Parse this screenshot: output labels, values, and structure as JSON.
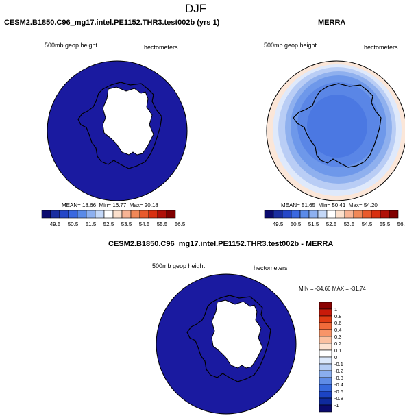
{
  "page": {
    "title": "DJF"
  },
  "panel_test": {
    "title": "CESM2.B1850.C96_mg17.intel.PE1152.THR3.test002b (yrs 1)",
    "variable": "500mb geop height",
    "units": "hectometers",
    "stats": {
      "mean_label": "MEAN=",
      "mean": "18.66",
      "min_label": "Min=",
      "min": "16.77",
      "max_label": "Max=",
      "max": "20.18"
    }
  },
  "panel_ref": {
    "title": "MERRA",
    "variable": "500mb geop height",
    "units": "hectometers",
    "stats": {
      "mean_label": "MEAN=",
      "mean": "51.65",
      "min_label": "Min=",
      "min": "50.41",
      "max_label": "Max=",
      "max": "54.20"
    }
  },
  "panel_diff": {
    "title": "CESM2.B1850.C96_mg17.intel.PE1152.THR3.test002b - MERRA",
    "variable": "500mb geop height",
    "units": "hectometers",
    "minmax": "MIN = -34.66 MAX = -31.74"
  },
  "colorbar_main": {
    "labels": [
      "49.5",
      "50.5",
      "51.5",
      "52.5",
      "53.5",
      "54.5",
      "55.5",
      "56.5"
    ],
    "colors": [
      "#0b0b6e",
      "#1a2ea0",
      "#2547c8",
      "#3a68e0",
      "#5a8ae8",
      "#8db0f0",
      "#c4d8f8",
      "#ffffff",
      "#fce0cc",
      "#f8b494",
      "#f08858",
      "#e85a2c",
      "#d83010",
      "#b01008",
      "#800000"
    ]
  },
  "colorbar_diff": {
    "labels": [
      "1",
      "0.8",
      "0.6",
      "0.4",
      "0.3",
      "0.2",
      "0.1",
      "0",
      "-0.1",
      "-0.2",
      "-0.3",
      "-0.4",
      "-0.6",
      "-0.8",
      "-1"
    ],
    "colors": [
      "#8b0000",
      "#c81a0a",
      "#e03c14",
      "#f06a3a",
      "#f89468",
      "#fbc0a0",
      "#fde2d0",
      "#ffffff",
      "#dbe8fb",
      "#b4ccf4",
      "#8aaeee",
      "#5f8ce6",
      "#3668dc",
      "#1c44c4",
      "#0f2a9c",
      "#0b0b6e"
    ]
  },
  "map_colors": {
    "ocean_dark": "#1a1aa0",
    "land": "#ffffff",
    "merra_bands": [
      "#fbe6d8",
      "#dfe9fb",
      "#b9cdf5",
      "#8fb0ee",
      "#6e98ea",
      "#5a86e6",
      "#4b78e2"
    ]
  }
}
